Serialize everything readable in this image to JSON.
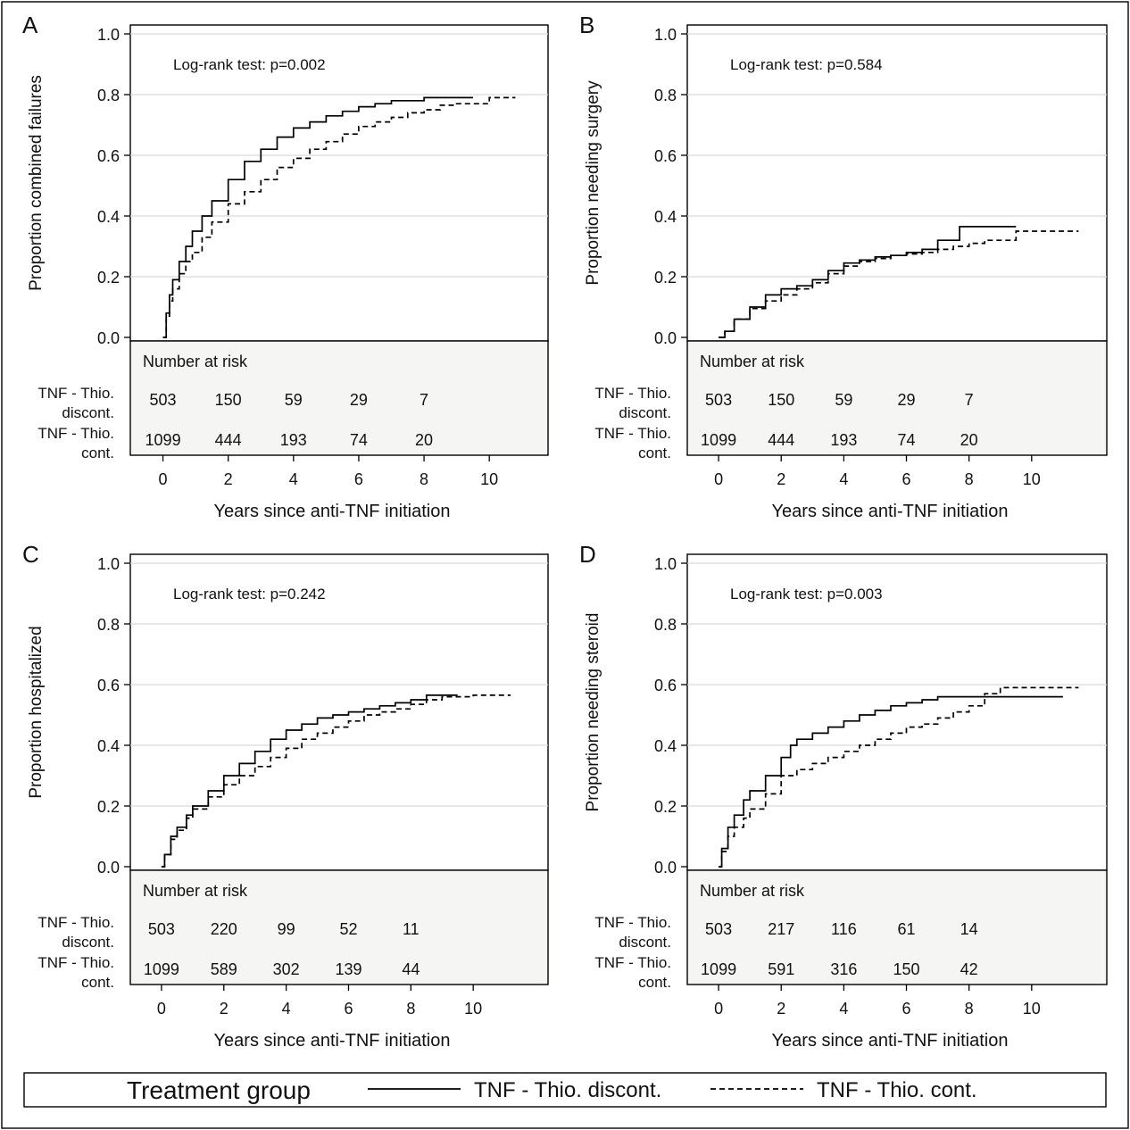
{
  "legend": {
    "title": "Treatment group",
    "entries": [
      {
        "label": "TNF - Thio. discont.",
        "style": "solid"
      },
      {
        "label": "TNF - Thio. cont.",
        "style": "dashed"
      }
    ]
  },
  "chart_data": [
    {
      "type": "line",
      "panel": "A",
      "ylabel": "Proportion combined failures",
      "xlabel": "Years since anti-TNF initiation",
      "annotation": "Log-rank test: p=0.002",
      "xlim": [
        -1,
        11.8
      ],
      "ylim": [
        0,
        1
      ],
      "xticks": [
        "0",
        "2",
        "4",
        "6",
        "8",
        "10"
      ],
      "yticks": [
        "0.0",
        "0.2",
        "0.4",
        "0.6",
        "0.8",
        "1.0"
      ],
      "series": [
        {
          "name": "TNF - Thio. discont.",
          "style": "solid",
          "x": [
            0,
            0.1,
            0.2,
            0.3,
            0.5,
            0.7,
            0.9,
            1.2,
            1.5,
            2,
            2.5,
            3,
            3.5,
            4,
            4.5,
            5,
            5.5,
            6,
            6.5,
            7,
            8,
            9,
            9.5
          ],
          "y": [
            0,
            0.08,
            0.14,
            0.19,
            0.25,
            0.3,
            0.35,
            0.4,
            0.45,
            0.52,
            0.58,
            0.62,
            0.66,
            0.69,
            0.71,
            0.73,
            0.745,
            0.76,
            0.77,
            0.78,
            0.79,
            0.79,
            0.79
          ]
        },
        {
          "name": "TNF - Thio. cont.",
          "style": "dashed",
          "x": [
            0,
            0.1,
            0.2,
            0.3,
            0.5,
            0.7,
            0.9,
            1.2,
            1.5,
            2,
            2.5,
            3,
            3.5,
            4,
            4.5,
            5,
            5.5,
            6,
            6.5,
            7,
            7.5,
            8,
            8.5,
            9,
            10,
            10.8
          ],
          "y": [
            0,
            0.07,
            0.12,
            0.16,
            0.21,
            0.25,
            0.28,
            0.33,
            0.38,
            0.44,
            0.48,
            0.52,
            0.56,
            0.59,
            0.62,
            0.645,
            0.67,
            0.695,
            0.71,
            0.725,
            0.74,
            0.75,
            0.765,
            0.77,
            0.79,
            0.79
          ]
        }
      ],
      "risk_table": {
        "title": "Number at risk",
        "at_years": [
          0,
          2,
          4,
          6,
          8
        ],
        "rows": [
          {
            "label_line1": "TNF - Thio.",
            "label_line2": "discont.",
            "values": [
              "503",
              "150",
              "59",
              "29",
              "7"
            ]
          },
          {
            "label_line1": "TNF - Thio.",
            "label_line2": "cont.",
            "values": [
              "1099",
              "444",
              "193",
              "74",
              "20"
            ]
          }
        ]
      }
    },
    {
      "type": "line",
      "panel": "B",
      "ylabel": "Proportion needing surgery",
      "xlabel": "Years since anti-TNF initiation",
      "annotation": "Log-rank test: p=0.584",
      "xlim": [
        -1,
        12.4
      ],
      "ylim": [
        0,
        1
      ],
      "xticks": [
        "0",
        "2",
        "4",
        "6",
        "8",
        "10"
      ],
      "yticks": [
        "0.0",
        "0.2",
        "0.4",
        "0.6",
        "0.8",
        "1.0"
      ],
      "series": [
        {
          "name": "TNF - Thio. discont.",
          "style": "solid",
          "x": [
            0,
            0.2,
            0.5,
            1,
            1.5,
            2,
            2.5,
            3,
            3.5,
            4,
            4.5,
            5,
            5.5,
            6,
            6.5,
            7,
            7.5,
            7.7,
            8,
            9.5
          ],
          "y": [
            0,
            0.02,
            0.06,
            0.1,
            0.14,
            0.16,
            0.17,
            0.19,
            0.22,
            0.245,
            0.255,
            0.265,
            0.27,
            0.28,
            0.29,
            0.32,
            0.32,
            0.365,
            0.365,
            0.365
          ]
        },
        {
          "name": "TNF - Thio. cont.",
          "style": "dashed",
          "x": [
            0,
            0.2,
            0.5,
            1,
            1.5,
            2,
            2.5,
            3,
            3.5,
            4,
            4.5,
            5,
            5.5,
            6,
            6.5,
            7,
            7.5,
            8,
            8.5,
            9,
            9.5,
            10,
            11.5
          ],
          "y": [
            0,
            0.02,
            0.06,
            0.095,
            0.12,
            0.14,
            0.16,
            0.18,
            0.21,
            0.235,
            0.25,
            0.26,
            0.27,
            0.275,
            0.28,
            0.29,
            0.3,
            0.31,
            0.32,
            0.32,
            0.35,
            0.35,
            0.35
          ]
        }
      ],
      "risk_table": {
        "title": "Number at risk",
        "at_years": [
          0,
          2,
          4,
          6,
          8
        ],
        "rows": [
          {
            "label_line1": "TNF - Thio.",
            "label_line2": "discont.",
            "values": [
              "503",
              "150",
              "59",
              "29",
              "7"
            ]
          },
          {
            "label_line1": "TNF - Thio.",
            "label_line2": "cont.",
            "values": [
              "1099",
              "444",
              "193",
              "74",
              "20"
            ]
          }
        ]
      }
    },
    {
      "type": "line",
      "panel": "C",
      "ylabel": "Proportion hospitalized",
      "xlabel": "Years since anti-TNF initiation",
      "annotation": "Log-rank test: p=0.242",
      "xlim": [
        -1,
        12.4
      ],
      "ylim": [
        0,
        1
      ],
      "xticks": [
        "0",
        "2",
        "4",
        "6",
        "8",
        "10"
      ],
      "yticks": [
        "0.0",
        "0.2",
        "0.4",
        "0.6",
        "0.8",
        "1.0"
      ],
      "series": [
        {
          "name": "TNF - Thio. discont.",
          "style": "solid",
          "x": [
            0,
            0.1,
            0.3,
            0.5,
            0.8,
            1,
            1.5,
            2,
            2.5,
            3,
            3.5,
            4,
            4.5,
            5,
            5.5,
            6,
            6.5,
            7,
            7.5,
            8,
            8.5,
            9,
            9.5
          ],
          "y": [
            0,
            0.04,
            0.1,
            0.13,
            0.17,
            0.2,
            0.25,
            0.3,
            0.34,
            0.38,
            0.42,
            0.45,
            0.47,
            0.49,
            0.5,
            0.51,
            0.52,
            0.53,
            0.54,
            0.55,
            0.565,
            0.565,
            0.565
          ]
        },
        {
          "name": "TNF - Thio. cont.",
          "style": "dashed",
          "x": [
            0,
            0.1,
            0.3,
            0.5,
            0.8,
            1,
            1.5,
            2,
            2.5,
            3,
            3.5,
            4,
            4.5,
            5,
            5.5,
            6,
            6.5,
            7,
            7.5,
            8,
            8.5,
            9,
            10,
            11.2
          ],
          "y": [
            0,
            0.04,
            0.09,
            0.12,
            0.16,
            0.19,
            0.23,
            0.27,
            0.3,
            0.33,
            0.36,
            0.39,
            0.42,
            0.44,
            0.46,
            0.48,
            0.5,
            0.51,
            0.52,
            0.535,
            0.55,
            0.56,
            0.565,
            0.565
          ]
        }
      ],
      "risk_table": {
        "title": "Number at risk",
        "at_years": [
          0,
          2,
          4,
          6,
          8
        ],
        "rows": [
          {
            "label_line1": "TNF - Thio.",
            "label_line2": "discont.",
            "values": [
              "503",
              "220",
              "99",
              "52",
              "11"
            ]
          },
          {
            "label_line1": "TNF - Thio.",
            "label_line2": "cont.",
            "values": [
              "1099",
              "589",
              "302",
              "139",
              "44"
            ]
          }
        ]
      }
    },
    {
      "type": "line",
      "panel": "D",
      "ylabel": "Proportion needing steroid",
      "xlabel": "Years since anti-TNF initiation",
      "annotation": "Log-rank test: p=0.003",
      "xlim": [
        -1,
        12.4
      ],
      "ylim": [
        0,
        1
      ],
      "xticks": [
        "0",
        "2",
        "4",
        "6",
        "8",
        "10"
      ],
      "yticks": [
        "0.0",
        "0.2",
        "0.4",
        "0.6",
        "0.8",
        "1.0"
      ],
      "series": [
        {
          "name": "TNF - Thio. discont.",
          "style": "solid",
          "x": [
            0,
            0.1,
            0.3,
            0.5,
            0.8,
            1,
            1.5,
            2,
            2.3,
            2.5,
            3,
            3.5,
            4,
            4.5,
            5,
            5.5,
            6,
            6.5,
            7,
            8,
            9,
            10,
            11
          ],
          "y": [
            0,
            0.06,
            0.13,
            0.17,
            0.22,
            0.25,
            0.3,
            0.36,
            0.4,
            0.42,
            0.44,
            0.46,
            0.48,
            0.5,
            0.515,
            0.53,
            0.54,
            0.55,
            0.56,
            0.56,
            0.56,
            0.56,
            0.56
          ]
        },
        {
          "name": "TNF - Thio. cont.",
          "style": "dashed",
          "x": [
            0,
            0.1,
            0.3,
            0.5,
            0.8,
            1,
            1.5,
            2,
            2.5,
            3,
            3.5,
            4,
            4.5,
            5,
            5.5,
            6,
            6.5,
            7,
            7.5,
            8,
            8.5,
            9,
            10,
            11.5
          ],
          "y": [
            0,
            0.05,
            0.1,
            0.13,
            0.16,
            0.19,
            0.24,
            0.3,
            0.32,
            0.34,
            0.36,
            0.38,
            0.4,
            0.42,
            0.44,
            0.46,
            0.47,
            0.49,
            0.51,
            0.53,
            0.57,
            0.59,
            0.59,
            0.59
          ]
        }
      ],
      "risk_table": {
        "title": "Number at risk",
        "at_years": [
          0,
          2,
          4,
          6,
          8
        ],
        "rows": [
          {
            "label_line1": "TNF - Thio.",
            "label_line2": "discont.",
            "values": [
              "503",
              "217",
              "116",
              "61",
              "14"
            ]
          },
          {
            "label_line1": "TNF - Thio.",
            "label_line2": "cont.",
            "values": [
              "1099",
              "591",
              "316",
              "150",
              "42"
            ]
          }
        ]
      }
    }
  ]
}
